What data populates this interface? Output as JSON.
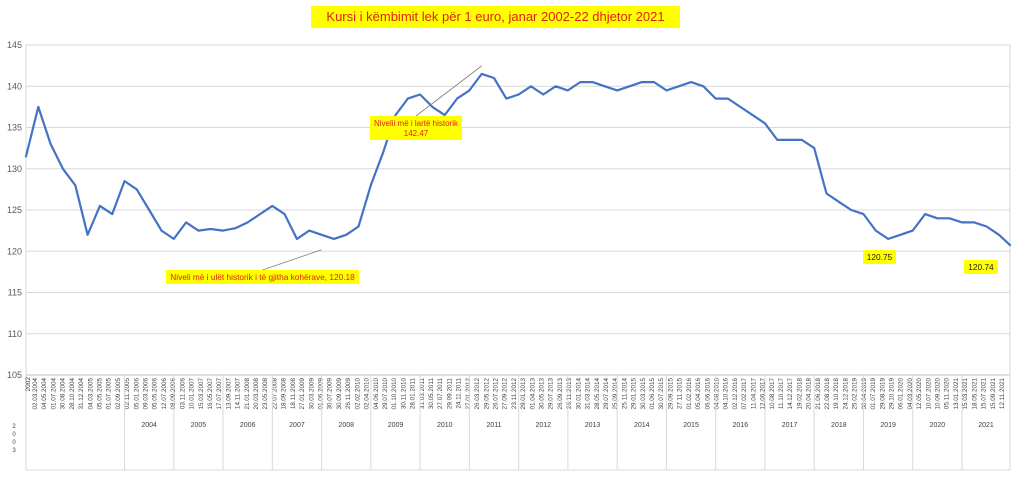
{
  "chart_data": {
    "type": "line",
    "title": "Kursi i këmbimit lek për 1 euro, janar 2002-22 dhjetor 2021",
    "xlabel": "",
    "ylabel": "",
    "ylim": [
      105,
      145
    ],
    "yticks": [
      105,
      110,
      115,
      120,
      125,
      130,
      135,
      140,
      145
    ],
    "grid": "horizontal",
    "legend": "none",
    "line_color": "#4472c4",
    "x_first_label": "2002",
    "x_first_label_vertical": "2 0 0 3",
    "years": [
      "2004",
      "2005",
      "2006",
      "2007",
      "2008",
      "2009",
      "2010",
      "2011",
      "2012",
      "2013",
      "2014",
      "2015",
      "2016",
      "2017",
      "2018",
      "2019",
      "2020",
      "2021"
    ],
    "date_ticks": [
      "02.03.2004",
      "04.05.2004",
      "01.07.2004",
      "30.08.2004",
      "28.10.2004",
      "31.12.2004",
      "04.03.2005",
      "05.05.2005",
      "01.07.2005",
      "02.09.2005",
      "02.11.2005",
      "05.01.2006",
      "09.03.2006",
      "05.05.2006",
      "12.07.2006",
      "08.09.2006",
      "03.11.2006",
      "10.01.2007",
      "15.03.2007",
      "16.05.2007",
      "17.07.2007",
      "13.09.2007",
      "14.11.2007",
      "21.01.2008",
      "20.03.2008",
      "23.05.2008",
      "22.07.2008",
      "18.09.2008",
      "18.11.2008",
      "27.01.2009",
      "30.03.2009",
      "01.06.2009",
      "30.07.2009",
      "30.09.2009",
      "26.11.2009",
      "02.02.2010",
      "02.04.2010",
      "04.06.2010",
      "29.07.2010",
      "01.10.2010",
      "30.11.2010",
      "28.01.2011",
      "31.03.2011",
      "30.05.2011",
      "27.07.2011",
      "29.09.2011",
      "24.11.2011",
      "27.01.2012",
      "26.03.2012",
      "29.05.2012",
      "26.07.2012",
      "27.09.2012",
      "23.11.2012",
      "29.01.2013",
      "01.04.2013",
      "30.05.2013",
      "29.07.2013",
      "26.09.2013",
      "26.11.2013",
      "30.01.2014",
      "31.03.2014",
      "28.05.2014",
      "29.07.2014",
      "25.09.2014",
      "25.11.2014",
      "29.01.2015",
      "30.03.2015",
      "01.06.2015",
      "30.07.2015",
      "29.09.2015",
      "27.11.2015",
      "01.02.2016",
      "05.04.2016",
      "06.06.2016",
      "04.08.2016",
      "04.10.2016",
      "02.12.2016",
      "07.02.2017",
      "11.04.2017",
      "12.06.2017",
      "10.08.2017",
      "11.10.2017",
      "14.12.2017",
      "19.02.2018",
      "20.04.2018",
      "21.06.2018",
      "22.08.2018",
      "19.10.2018",
      "24.12.2018",
      "25.02.2019",
      "30.04.2019",
      "01.07.2019",
      "29.08.2019",
      "29.10.2019",
      "06.01.2020",
      "04.03.2020",
      "12.05.2020",
      "10.07.2020",
      "10.09.2020",
      "05.11.2020",
      "13.01.2021",
      "15.03.2021",
      "18.05.2021",
      "15.07.2021",
      "15.09.2021",
      "12.11.2021"
    ],
    "x_date_range": [
      "2002-01",
      "2021-12-22"
    ],
    "series": [
      {
        "name": "",
        "x": [
          "2002-01",
          "2002-04",
          "2002-07",
          "2002-10",
          "2003-01",
          "2003-04",
          "2003-07",
          "2003-10",
          "2004-01",
          "2004-04",
          "2004-07",
          "2004-10",
          "2005-01",
          "2005-04",
          "2005-07",
          "2005-10",
          "2006-01",
          "2006-04",
          "2006-07",
          "2006-10",
          "2007-01",
          "2007-04",
          "2007-07",
          "2007-10",
          "2008-01",
          "2008-04",
          "2008-07",
          "2008-10",
          "2009-01",
          "2009-04",
          "2009-07",
          "2009-10",
          "2010-01",
          "2010-04",
          "2010-07",
          "2010-10",
          "2011-01",
          "2011-04",
          "2011-07",
          "2011-10",
          "2012-01",
          "2012-04",
          "2012-07",
          "2012-10",
          "2013-01",
          "2013-04",
          "2013-07",
          "2013-10",
          "2014-01",
          "2014-04",
          "2014-07",
          "2014-10",
          "2015-01",
          "2015-04",
          "2015-07",
          "2015-10",
          "2016-01",
          "2016-04",
          "2016-07",
          "2016-10",
          "2017-01",
          "2017-04",
          "2017-07",
          "2017-10",
          "2018-01",
          "2018-04",
          "2018-07",
          "2018-10",
          "2019-01",
          "2019-04",
          "2019-07",
          "2019-10",
          "2020-01",
          "2020-04",
          "2020-07",
          "2020-10",
          "2021-01",
          "2021-04",
          "2021-07",
          "2021-10",
          "2021-12-22"
        ],
        "values": [
          131.5,
          137.5,
          133.0,
          130.0,
          128.0,
          122.0,
          125.5,
          124.5,
          128.5,
          127.5,
          125.0,
          122.5,
          121.5,
          123.5,
          122.5,
          122.7,
          122.5,
          122.8,
          123.5,
          124.5,
          125.5,
          124.5,
          121.5,
          122.5,
          122.0,
          121.5,
          122.0,
          123.0,
          128.0,
          132.0,
          136.5,
          138.5,
          139.0,
          137.5,
          136.5,
          138.5,
          139.5,
          141.5,
          141.0,
          138.5,
          139.0,
          140.0,
          139.0,
          140.0,
          139.5,
          140.5,
          140.5,
          140.0,
          139.5,
          140.0,
          140.5,
          140.5,
          139.5,
          140.0,
          140.5,
          140.0,
          138.5,
          138.5,
          137.5,
          136.5,
          135.5,
          133.5,
          133.5,
          133.5,
          132.5,
          127.0,
          126.0,
          125.0,
          124.5,
          122.5,
          121.5,
          122.0,
          122.5,
          124.5,
          124.0,
          124.0,
          123.5,
          123.5,
          123.0,
          122.0,
          120.74
        ]
      }
    ],
    "annotations": [
      {
        "text": "Nivelii më i lartë historik",
        "text2": "142.47",
        "x": "2011-04",
        "y": 142.47
      },
      {
        "text": "Niveli më i ulët historik i të gjitha kohërave, 120.18",
        "x": "2008-01",
        "y": 120.18
      },
      {
        "text": "120.75",
        "x": "2019-08",
        "y": 120.75
      },
      {
        "text": "120.74",
        "x": "2021-12-22",
        "y": 120.74
      }
    ]
  }
}
